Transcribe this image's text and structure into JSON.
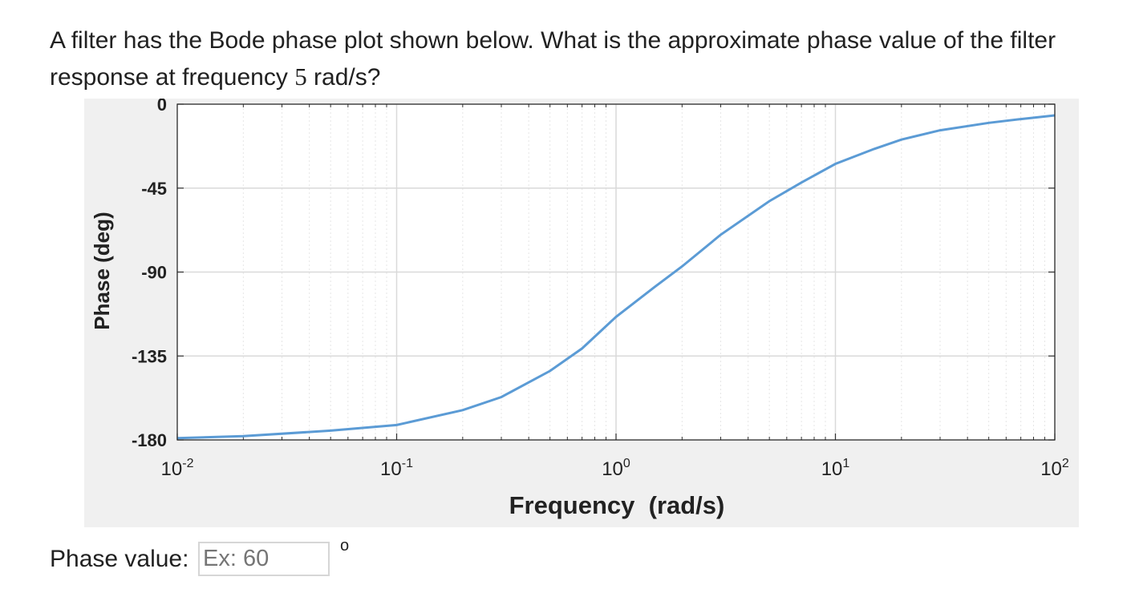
{
  "question": {
    "text_before": "A filter has the Bode phase plot shown below. What is the approximate phase value of the filter response at frequency ",
    "frequency_value": "5",
    "text_after": " rad/s?"
  },
  "answer": {
    "label": "Phase value:",
    "placeholder": "Ex: 60",
    "unit_symbol": "o"
  },
  "chart_data": {
    "type": "line",
    "xlabel": "Frequency  (rad/s)",
    "ylabel": "Phase (deg)",
    "xscale": "log",
    "xlim": [
      0.01,
      100
    ],
    "ylim": [
      -180,
      0
    ],
    "grid": true,
    "x_ticks": [
      {
        "base": "10",
        "exp": "-2",
        "value": 0.01
      },
      {
        "base": "10",
        "exp": "-1",
        "value": 0.1
      },
      {
        "base": "10",
        "exp": "0",
        "value": 1
      },
      {
        "base": "10",
        "exp": "1",
        "value": 10
      },
      {
        "base": "10",
        "exp": "2",
        "value": 100
      }
    ],
    "y_ticks": [
      {
        "label": "0",
        "value": 0
      },
      {
        "label": "-45",
        "value": -45
      },
      {
        "label": "-90",
        "value": -90
      },
      {
        "label": "-135",
        "value": -135
      },
      {
        "label": "-180",
        "value": -180
      }
    ],
    "series": [
      {
        "color": "#5b9bd5",
        "x": [
          0.01,
          0.02,
          0.05,
          0.1,
          0.2,
          0.3,
          0.5,
          0.7,
          1,
          1.5,
          2,
          3,
          5,
          7,
          10,
          15,
          20,
          30,
          50,
          70,
          100
        ],
        "y": [
          -179,
          -178,
          -175,
          -172,
          -164,
          -157,
          -143,
          -131,
          -114,
          -98,
          -87,
          -70,
          -52,
          -42,
          -32,
          -24,
          -19,
          -14,
          -10,
          -8,
          -6
        ]
      }
    ]
  }
}
